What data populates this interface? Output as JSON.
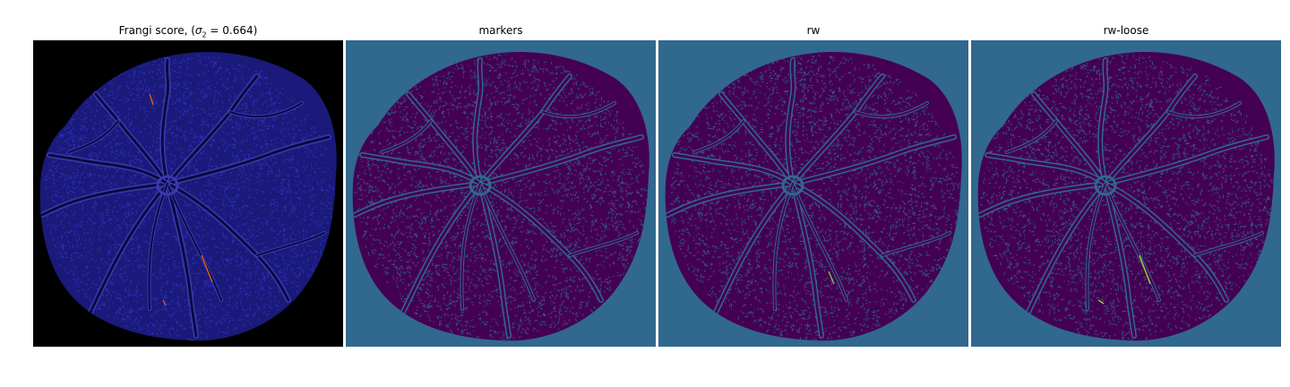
{
  "figure": {
    "panels": [
      {
        "id": "frangi",
        "title_text": "Frangi score, (",
        "title_math": "σ",
        "title_sub": "2",
        "title_rest": " = 0.664)",
        "background": "#000000",
        "fundus_fill": "#1a1a7a",
        "texture": "#3232c8",
        "vessel": "#0a0a40",
        "highlight": "#ff6600"
      },
      {
        "id": "markers",
        "title": "markers",
        "background": "#31688e",
        "fundus_fill": "#440154",
        "texture": "#31688e",
        "vessel": "#31688e"
      },
      {
        "id": "rw",
        "title": "rw",
        "background": "#31688e",
        "fundus_fill": "#440154",
        "texture": "#31688e",
        "vessel": "#31688e",
        "highlight": "#8fd744"
      },
      {
        "id": "rw-loose",
        "title": "rw-loose",
        "background": "#31688e",
        "fundus_fill": "#440154",
        "texture": "#31688e",
        "vessel": "#31688e",
        "highlight": "#b5de2b"
      }
    ]
  }
}
